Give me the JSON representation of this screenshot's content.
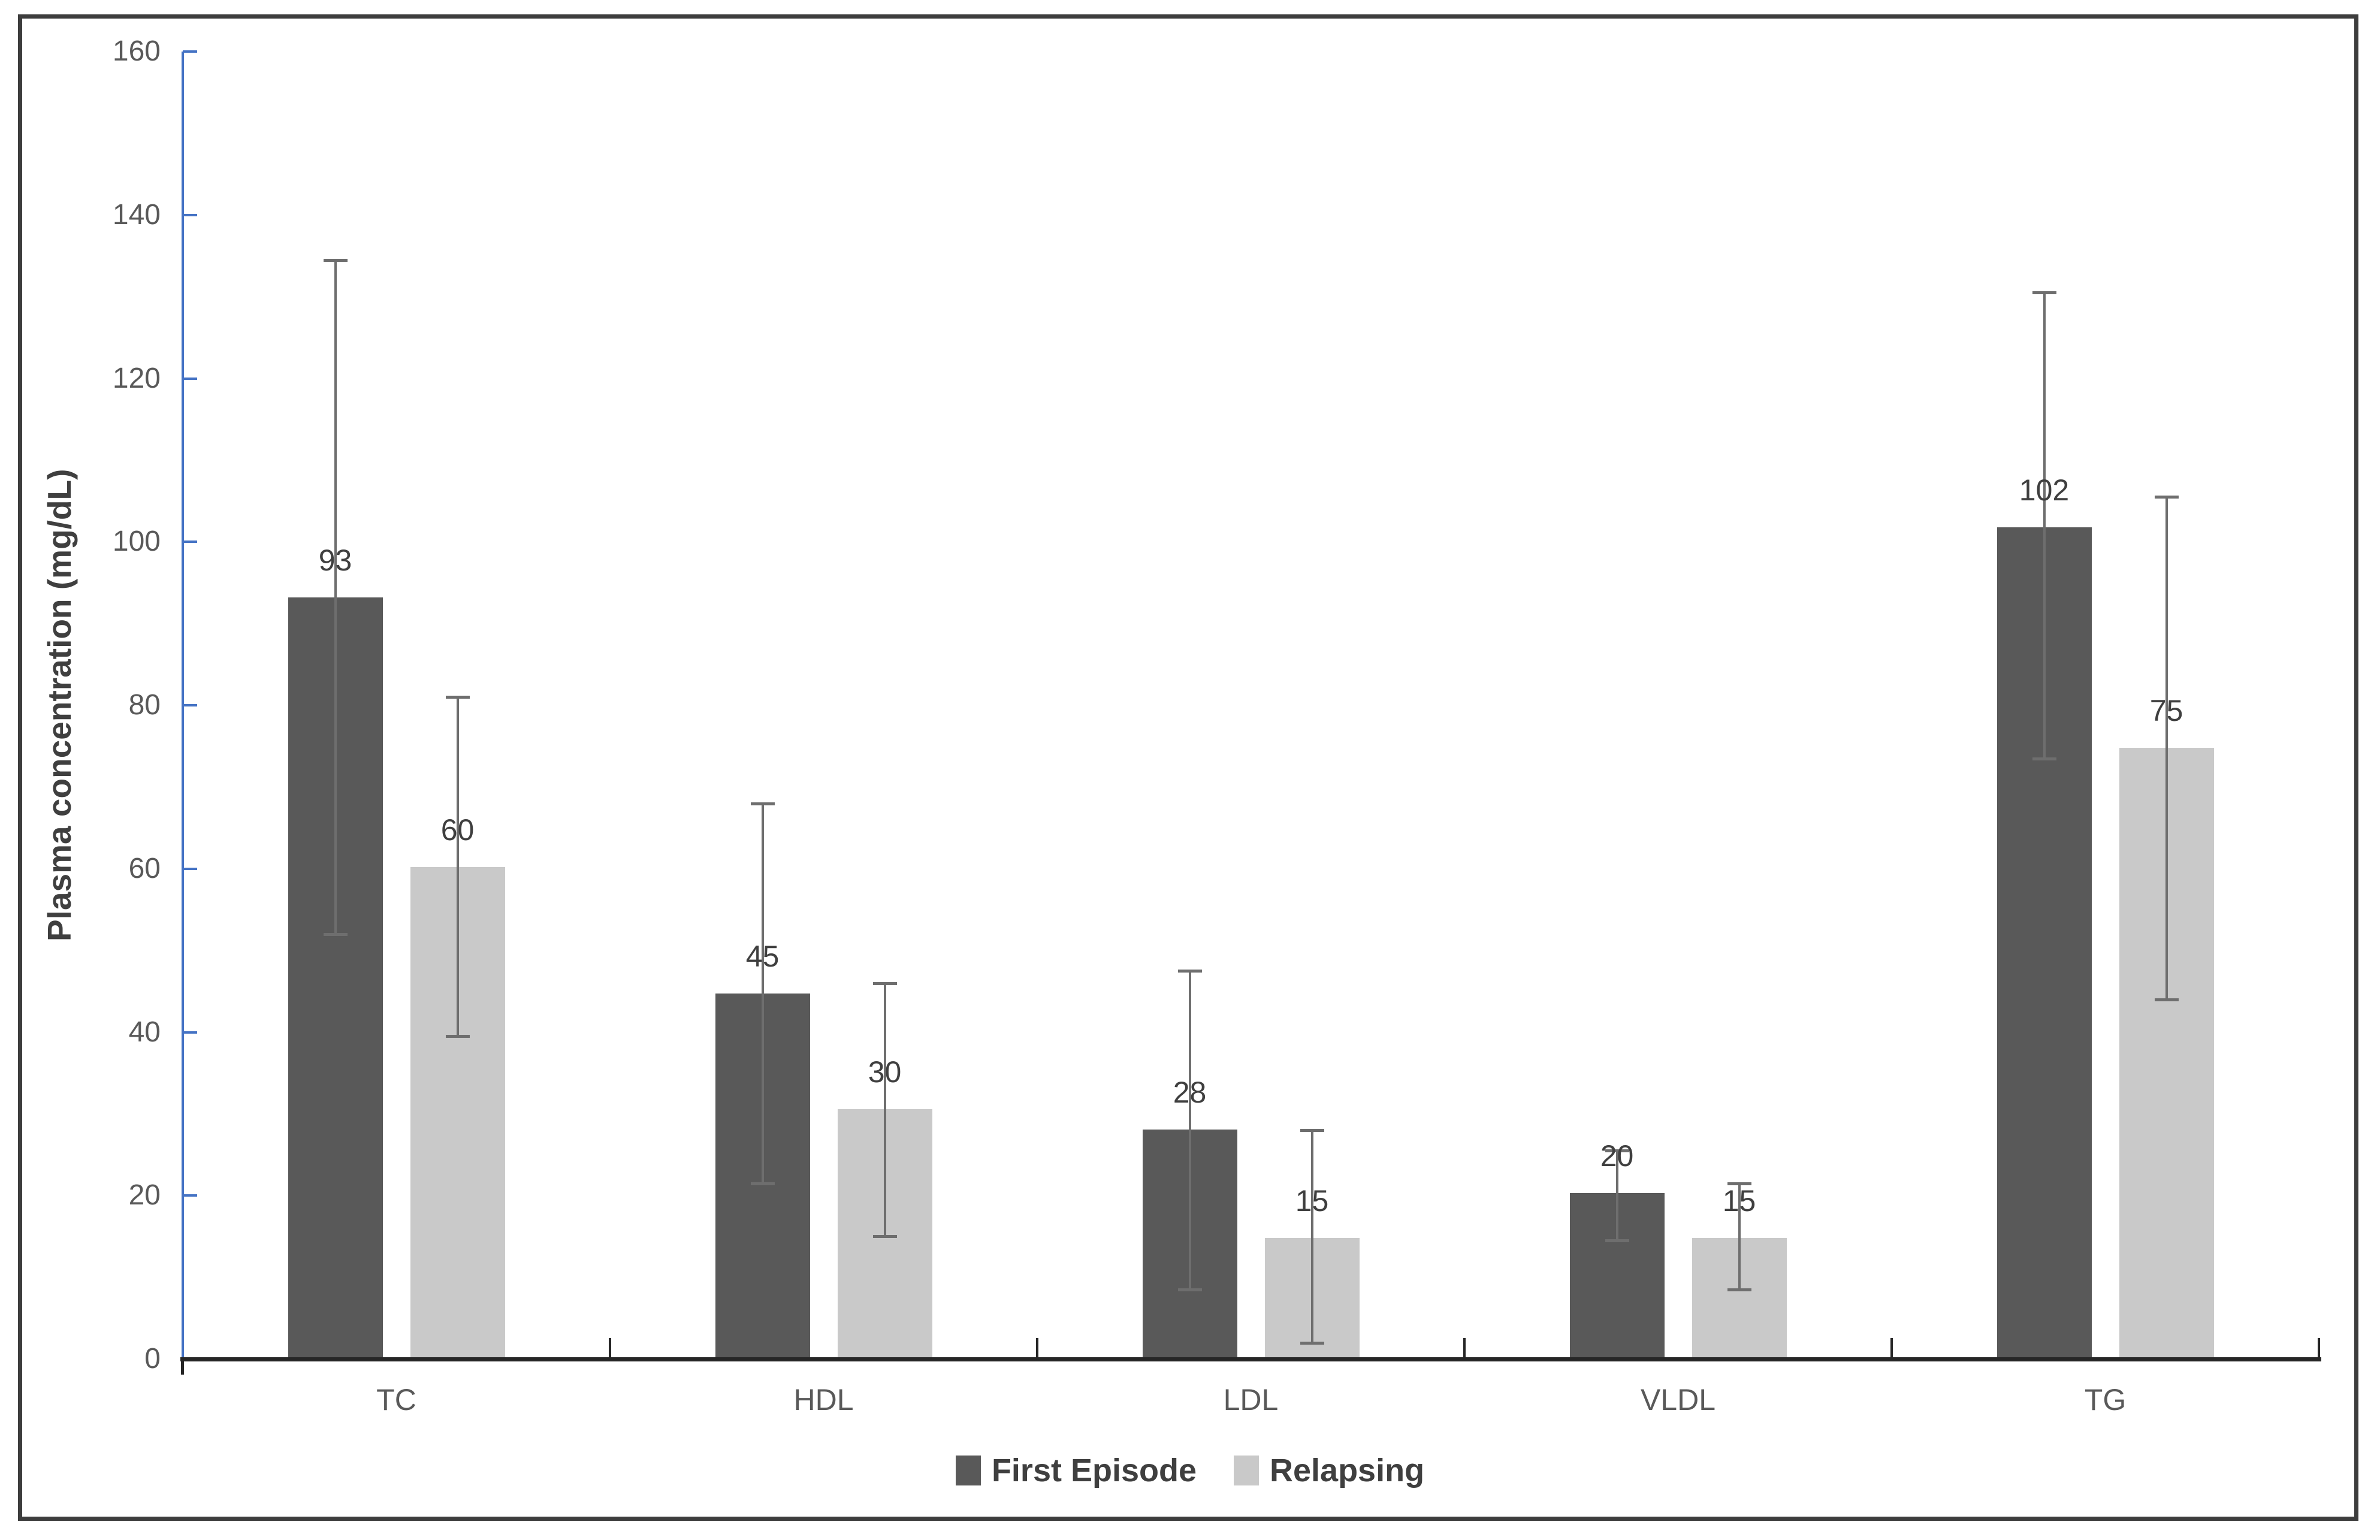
{
  "figure": {
    "y_axis_title": "Plasma concentration (mg/dL)"
  },
  "chart_data": {
    "type": "bar",
    "title": "",
    "xlabel": "",
    "ylabel": "Plasma concentration (mg/dL)",
    "categories": [
      "TC",
      "HDL",
      "LDL",
      "VLDL",
      "TG"
    ],
    "series": [
      {
        "name": "First Episode",
        "color": "#595959",
        "values": [
          93,
          45,
          28,
          20,
          102
        ],
        "bar_tops": [
          93.2,
          44.7,
          28.1,
          20.3,
          101.8
        ],
        "error_high": [
          134.5,
          68,
          47.5,
          25.5,
          130.5
        ],
        "error_low": [
          52,
          21.5,
          8.5,
          14.5,
          73.5
        ]
      },
      {
        "name": "Relapsing",
        "color": "#c9c9c9",
        "values": [
          60,
          30,
          15,
          15,
          75
        ],
        "bar_tops": [
          60.2,
          30.6,
          14.8,
          14.8,
          74.8
        ],
        "error_high": [
          81,
          46,
          28,
          21.5,
          105.5
        ],
        "error_low": [
          39.5,
          15,
          2,
          8.5,
          44
        ]
      }
    ],
    "y_ticks": [
      0,
      20,
      40,
      60,
      80,
      100,
      120,
      140,
      160
    ],
    "ylim": [
      0,
      160
    ],
    "grid": false,
    "legend_position": "bottom",
    "error_bars": true
  },
  "colors": {
    "bar_first_episode": "#595959",
    "bar_relapsing": "#c9c9c9",
    "y_axis_line": "#4472c4",
    "x_axis_line": "#262626",
    "error_bar": "#6e6e6e",
    "tick_label": "#595959",
    "category_label": "#595959",
    "data_label": "#3f3f3f",
    "legend_text": "#3f3f3f",
    "figure_border": "#3d3d3d",
    "background": "#ffffff"
  }
}
